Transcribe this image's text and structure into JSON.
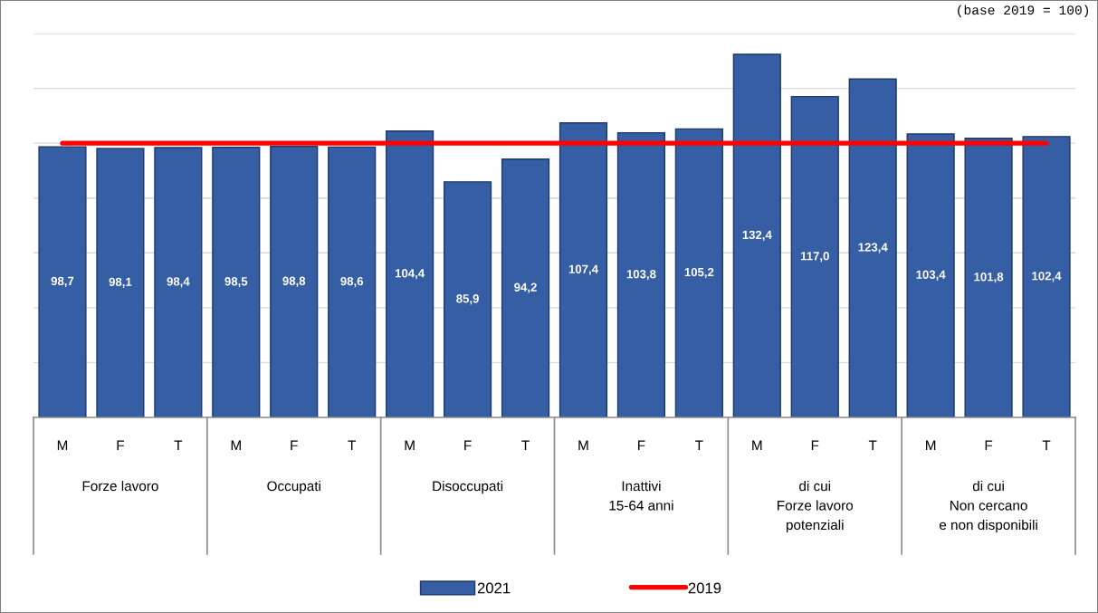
{
  "chart_data": {
    "type": "bar",
    "categories": [
      "M",
      "F",
      "T",
      "M",
      "F",
      "T",
      "M",
      "F",
      "T",
      "M",
      "F",
      "T",
      "M",
      "F",
      "T",
      "M",
      "F",
      "T"
    ],
    "series": [
      {
        "name": "2021",
        "color": "#365ea4",
        "values": [
          98.7,
          98.1,
          98.4,
          98.5,
          98.8,
          98.6,
          104.4,
          85.9,
          94.2,
          107.4,
          103.8,
          105.2,
          132.4,
          117.0,
          123.4,
          103.4,
          101.8,
          102.4
        ],
        "value_labels": [
          "98,7",
          "98,1",
          "98,4",
          "98,5",
          "98,8",
          "98,6",
          "104,4",
          "85,9",
          "94,2",
          "107,4",
          "103,8",
          "105,2",
          "132,4",
          "117,0",
          "123,4",
          "103,4",
          "101,8",
          "102,4"
        ]
      },
      {
        "name": "2019",
        "type": "line",
        "color": "#ff0000",
        "values": [
          100,
          100,
          100,
          100,
          100,
          100,
          100,
          100,
          100,
          100,
          100,
          100,
          100,
          100,
          100,
          100,
          100,
          100
        ]
      }
    ],
    "ylim": [
      0,
      140
    ],
    "yticks": [
      {
        "value": 0,
        "label": null
      },
      {
        "value": 20,
        "label": null
      },
      {
        "value": 40,
        "label": null
      },
      {
        "value": 60,
        "label": null
      },
      {
        "value": 80,
        "label": null
      },
      {
        "value": 100,
        "label": null
      },
      {
        "value": 120,
        "label": null
      },
      {
        "value": 140,
        "label": null
      }
    ],
    "tick_labels": "x",
    "grid": "y",
    "legend": "bottom",
    "annotations": [
      "(base 2019 = 100)",
      "Forze lavoro",
      "Occupati",
      "Disoccupati",
      "Inattivi\n15-64 anni",
      "di cui\nForze lavoro\npotenziali",
      "di cui\nNon cercano\ne non disponibili"
    ]
  }
}
